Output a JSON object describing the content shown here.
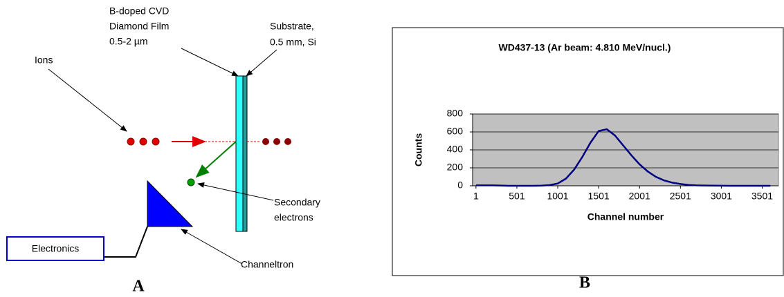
{
  "diagram": {
    "film_label": [
      "B-doped CVD",
      "Diamond Film",
      "0.5-2 µm"
    ],
    "substrate_label": [
      "Substrate,",
      "0.5 mm, Si"
    ],
    "ions_label": "Ions",
    "secondary_label": [
      "Secondary",
      "electrons"
    ],
    "electronics_label": "Electronics",
    "channeltron_label": "Channeltron",
    "caption": "A"
  },
  "chart_caption": "B",
  "chart_data": {
    "type": "line",
    "title": "WD437-13 (Ar beam: 4.810 MeV/nucl.)",
    "x_label": "Channel number",
    "y_label": "Counts",
    "x": [
      1,
      101,
      201,
      301,
      401,
      501,
      601,
      701,
      801,
      901,
      1001,
      1101,
      1201,
      1301,
      1401,
      1501,
      1601,
      1701,
      1801,
      1901,
      2001,
      2101,
      2201,
      2301,
      2401,
      2501,
      2601,
      2701,
      2801,
      2901,
      3001,
      3101,
      3201,
      3301,
      3401,
      3501,
      3601
    ],
    "values": [
      5,
      5,
      5,
      3,
      0,
      0,
      0,
      0,
      2,
      8,
      25,
      80,
      180,
      320,
      480,
      610,
      630,
      560,
      450,
      340,
      240,
      160,
      100,
      60,
      35,
      20,
      10,
      5,
      3,
      2,
      1,
      0,
      0,
      0,
      0,
      0,
      0
    ],
    "color": "#000080",
    "plot_background": "#c0c0c0",
    "grid": true,
    "xlim": [
      -40,
      3700
    ],
    "xticks": [
      1,
      501,
      1001,
      1501,
      2001,
      2501,
      3001,
      3501
    ],
    "ylim": [
      0,
      800
    ],
    "yticks": [
      0,
      200,
      400,
      600,
      800
    ]
  }
}
